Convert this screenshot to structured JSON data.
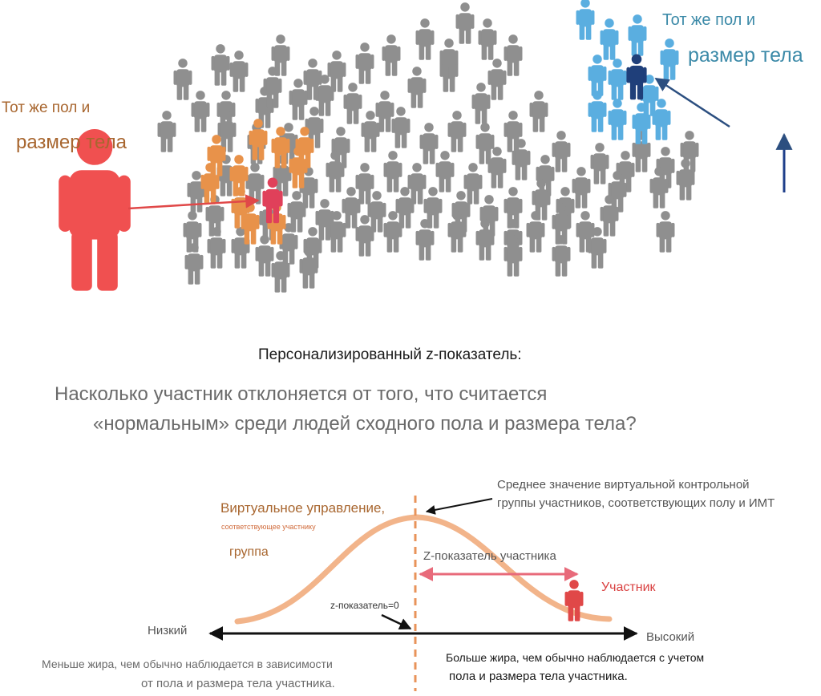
{
  "figure": {
    "left_group_label_line1": "Тот же пол и",
    "left_group_label_line2": "размер тела",
    "right_group_label_line1": "Тот же пол и",
    "right_group_label_line2": "размер тела",
    "colors": {
      "crowd": "#8f8f8f",
      "orange_group": "#e8924a",
      "blue_group": "#5aaee0",
      "navy_highlight": "#1f3f7a",
      "participant": "#f05050",
      "participant_in_crowd": "#e0405a",
      "curve": "#f2b48a",
      "mean_line": "#e8935a",
      "arrow_blue": "#2c4f80"
    }
  },
  "heading": {
    "title": "Персонализированный z-показатель:",
    "question_line1": "Насколько участник отклоняется от того, что считается",
    "question_line2": "«нормальным» среди людей сходного пола и размера тела?"
  },
  "diagram": {
    "virtual_control_line1": "Виртуальное управление,",
    "virtual_control_line2": "соответствующее участнику",
    "virtual_control_line3": "группа",
    "mean_annotation_line1": "Среднее значение виртуальной контрольной",
    "mean_annotation_line2": "группы участников, соответствующих полу и ИМТ",
    "z_score_label": "Z-показатель участника",
    "participant_label": "Участник",
    "z_zero_label": "z-показатель=0",
    "axis_low": "Низкий",
    "axis_high": "Высокий",
    "less_fat_line1": "Меньше жира, чем обычно наблюдается в зависимости",
    "less_fat_line2": "от пола и размера тела участника.",
    "more_fat_line1": "Больше жира, чем обычно наблюдается с учетом",
    "more_fat_line2": "пола и размера тела участника."
  }
}
